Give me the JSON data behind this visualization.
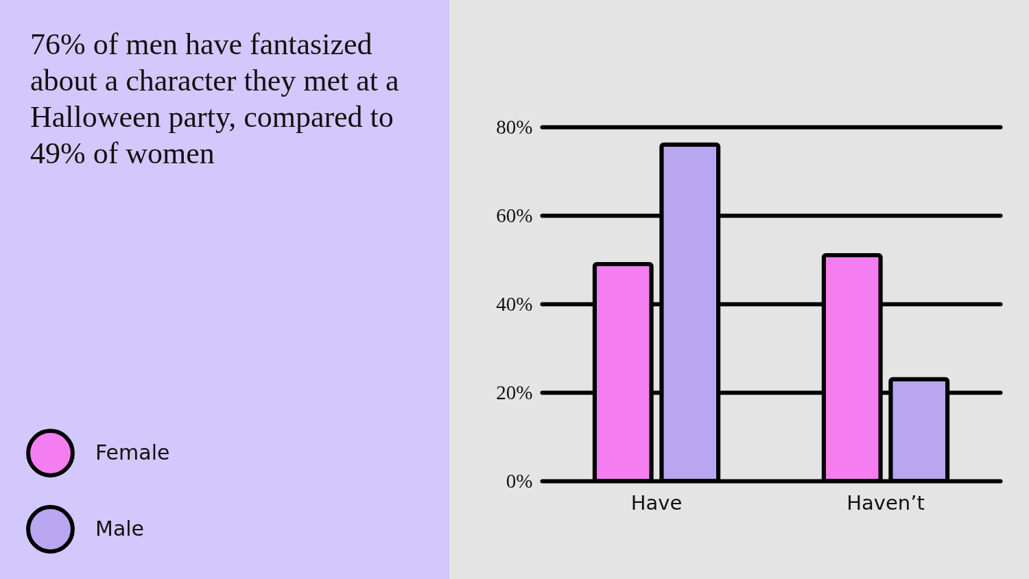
{
  "chart_data": {
    "type": "bar",
    "title": "76% of men have fantasized about a character they met at a Halloween party, compared to 49% of women",
    "categories": [
      "Have",
      "Haven’t"
    ],
    "series": [
      {
        "name": "Female",
        "color": "#f47ef0",
        "values": [
          49,
          51
        ]
      },
      {
        "name": "Male",
        "color": "#b9a6f0",
        "values": [
          76,
          23
        ]
      }
    ],
    "ylim": [
      0,
      80
    ],
    "yticks": [
      {
        "value": 0,
        "label": "0%"
      },
      {
        "value": 20,
        "label": "20%"
      },
      {
        "value": 40,
        "label": "40%"
      },
      {
        "value": 60,
        "label": "60%"
      },
      {
        "value": 80,
        "label": "80%"
      }
    ],
    "grid": "y",
    "legend": "bottom left"
  }
}
